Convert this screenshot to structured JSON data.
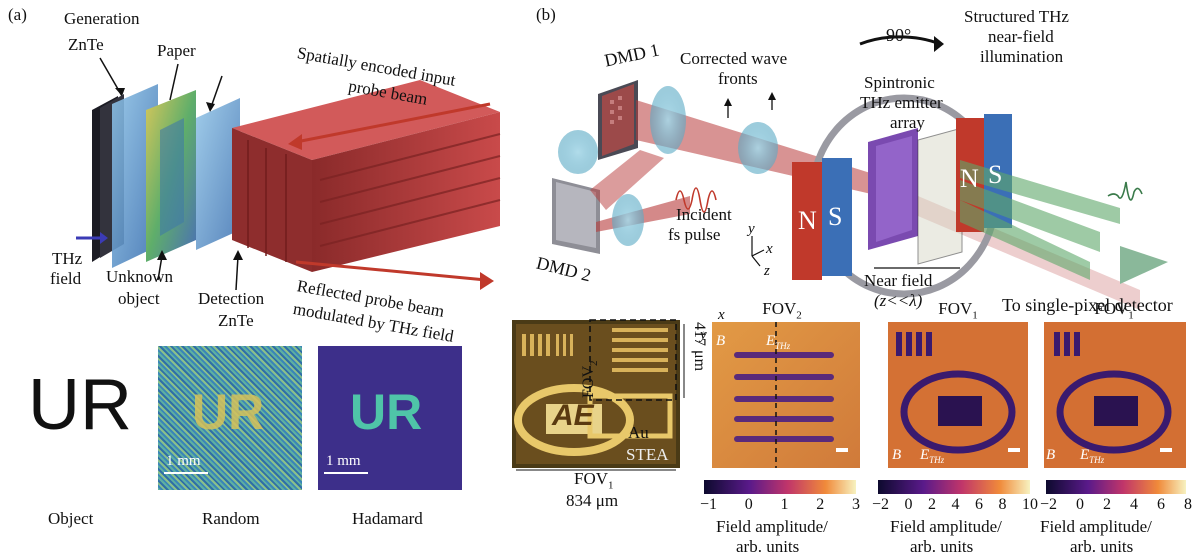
{
  "panel_a": {
    "label": "(a)",
    "generation": "Generation",
    "generation_sub": "ZnTe",
    "paper": "Paper",
    "thz_field_1": "THz",
    "thz_field_2": "field",
    "unknown_1": "Unknown",
    "unknown_2": "object",
    "detection_1": "Detection",
    "detection_2": "ZnTe",
    "input_beam_1": "Spatially encoded input",
    "input_beam_2": "probe beam",
    "reflected_1": "Reflected probe beam",
    "reflected_2": "modulated by THz field",
    "ur_text": "UR",
    "scale_random": "1 mm",
    "scale_hadamard": "1 mm",
    "cap_object": "Object",
    "cap_random": "Random",
    "cap_hadamard": "Hadamard",
    "img_random_text": "UR",
    "img_hadamard_text": "UR"
  },
  "panel_b": {
    "label": "(b)",
    "dmd1": "DMD 1",
    "dmd2": "DMD 2",
    "corrected_1": "Corrected wave",
    "corrected_2": "fronts",
    "angle": "90°",
    "spintronic_1": "Spintronic",
    "spintronic_2": "THz emitter",
    "spintronic_3": "array",
    "structured_1": "Structured THz",
    "structured_2": "near-field",
    "structured_3": "illumination",
    "incident_1": "Incident",
    "incident_2": "fs pulse",
    "axis_y": "y",
    "axis_x": "x",
    "axis_z": "z",
    "near_field_1": "Near field",
    "near_field_2": "(z<<λ)",
    "magnet_n1": "N",
    "magnet_s1": "S",
    "magnet_n2": "N",
    "magnet_s2": "S",
    "to_detector": "To single-pixel detector"
  },
  "sample": {
    "fov2_label": "FOV",
    "fov2_sub": "2",
    "dim_v": "417 μm",
    "au": "Au",
    "stea": "STEA",
    "fov1_label": "FOV",
    "fov1_sub": "1",
    "dim_h": "834 μm",
    "logo_text": "AE"
  },
  "maps": [
    {
      "title": "FOV",
      "title_sub": "2",
      "b_label": "B",
      "e_label": "E",
      "e_sub": "THz",
      "axis_x": "x",
      "axis_y": "y",
      "ticks": [
        "−1",
        "0",
        "1",
        "2",
        "3"
      ],
      "cap_1": "Field amplitude/",
      "cap_2": "arb. units"
    },
    {
      "title": "FOV",
      "title_sub": "1",
      "b_label": "B",
      "e_label": "E",
      "e_sub": "THz",
      "ticks": [
        "−2",
        "0",
        "2",
        "4",
        "6",
        "8",
        "10"
      ],
      "cap_1": "Field amplitude/",
      "cap_2": "arb. units"
    },
    {
      "title": "FOV",
      "title_sub": "1",
      "b_label": "B",
      "e_label": "E",
      "e_sub": "THz",
      "ticks": [
        "−2",
        "0",
        "2",
        "4",
        "6",
        "8"
      ],
      "cap_1": "Field amplitude/",
      "cap_2": "arb. units"
    }
  ],
  "colors": {
    "beam_red": "#b83a3a",
    "arrow_red": "#c0392b",
    "magnet_red": "#c0392b",
    "magnet_blue": "#3b6fb6",
    "map_orange": "#e8923a",
    "map_purple": "#3a1a6e",
    "sample_gold": "#c8a24a"
  }
}
